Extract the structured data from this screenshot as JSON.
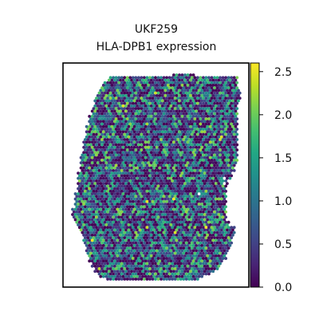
{
  "chart_data": {
    "type": "scatter",
    "title": "UKF259",
    "subtitle": "HLA-DPB1 expression",
    "xlabel": "",
    "ylabel": "",
    "grid": false,
    "colormap": "viridis",
    "colorbar": {
      "range": [
        0.0,
        2.6
      ],
      "ticks": [
        0.0,
        0.5,
        1.0,
        1.5,
        2.0,
        2.5
      ],
      "tick_labels": [
        "0.0",
        "0.5",
        "1.0",
        "1.5",
        "2.0",
        "2.5"
      ]
    },
    "spot_grid": {
      "layout": "hexagonal",
      "cols": 60,
      "rows": 80,
      "column_extent_by_row": [
        [
          36,
          43
        ],
        [
          13,
          58
        ],
        [
          13,
          58
        ],
        [
          11,
          58
        ],
        [
          11,
          58
        ],
        [
          10,
          58
        ],
        [
          10,
          59
        ],
        [
          9,
          59
        ],
        [
          9,
          59
        ],
        [
          8,
          59
        ],
        [
          8,
          59
        ],
        [
          8,
          58
        ],
        [
          8,
          58
        ],
        [
          7,
          58
        ],
        [
          7,
          58
        ],
        [
          7,
          58
        ],
        [
          6,
          58
        ],
        [
          6,
          58
        ],
        [
          6,
          58
        ],
        [
          6,
          58
        ],
        [
          5,
          58
        ],
        [
          5,
          58
        ],
        [
          5,
          58
        ],
        [
          5,
          58
        ],
        [
          5,
          58
        ],
        [
          4,
          58
        ],
        [
          4,
          58
        ],
        [
          4,
          58
        ],
        [
          4,
          58
        ],
        [
          4,
          58
        ],
        [
          4,
          58
        ],
        [
          3,
          58
        ],
        [
          3,
          58
        ],
        [
          3,
          58
        ],
        [
          3,
          58
        ],
        [
          3,
          57
        ],
        [
          3,
          57
        ],
        [
          3,
          57
        ],
        [
          2,
          56
        ],
        [
          2,
          56
        ],
        [
          2,
          56
        ],
        [
          2,
          55
        ],
        [
          2,
          55
        ],
        [
          2,
          54
        ],
        [
          2,
          54
        ],
        [
          2,
          54
        ],
        [
          1,
          54
        ],
        [
          1,
          54
        ],
        [
          1,
          54
        ],
        [
          1,
          54
        ],
        [
          1,
          54
        ],
        [
          1,
          54
        ],
        [
          0,
          54
        ],
        [
          0,
          54
        ],
        [
          0,
          54
        ],
        [
          0,
          54
        ],
        [
          1,
          54
        ],
        [
          1,
          55
        ],
        [
          2,
          55
        ],
        [
          2,
          57
        ],
        [
          3,
          57
        ],
        [
          3,
          57
        ],
        [
          4,
          57
        ],
        [
          4,
          56
        ],
        [
          4,
          56
        ],
        [
          4,
          56
        ],
        [
          5,
          56
        ],
        [
          5,
          55
        ],
        [
          5,
          55
        ],
        [
          5,
          54
        ],
        [
          6,
          54
        ],
        [
          6,
          54
        ],
        [
          6,
          53
        ],
        [
          7,
          52
        ],
        [
          7,
          52
        ],
        [
          8,
          51
        ],
        [
          8,
          50
        ],
        [
          9,
          48
        ],
        [
          10,
          46
        ],
        [
          12,
          44
        ]
      ],
      "holes": [
        [
          54,
          40
        ],
        [
          55,
          41
        ],
        [
          54,
          42
        ],
        [
          55,
          43
        ],
        [
          45,
          46
        ]
      ]
    }
  }
}
